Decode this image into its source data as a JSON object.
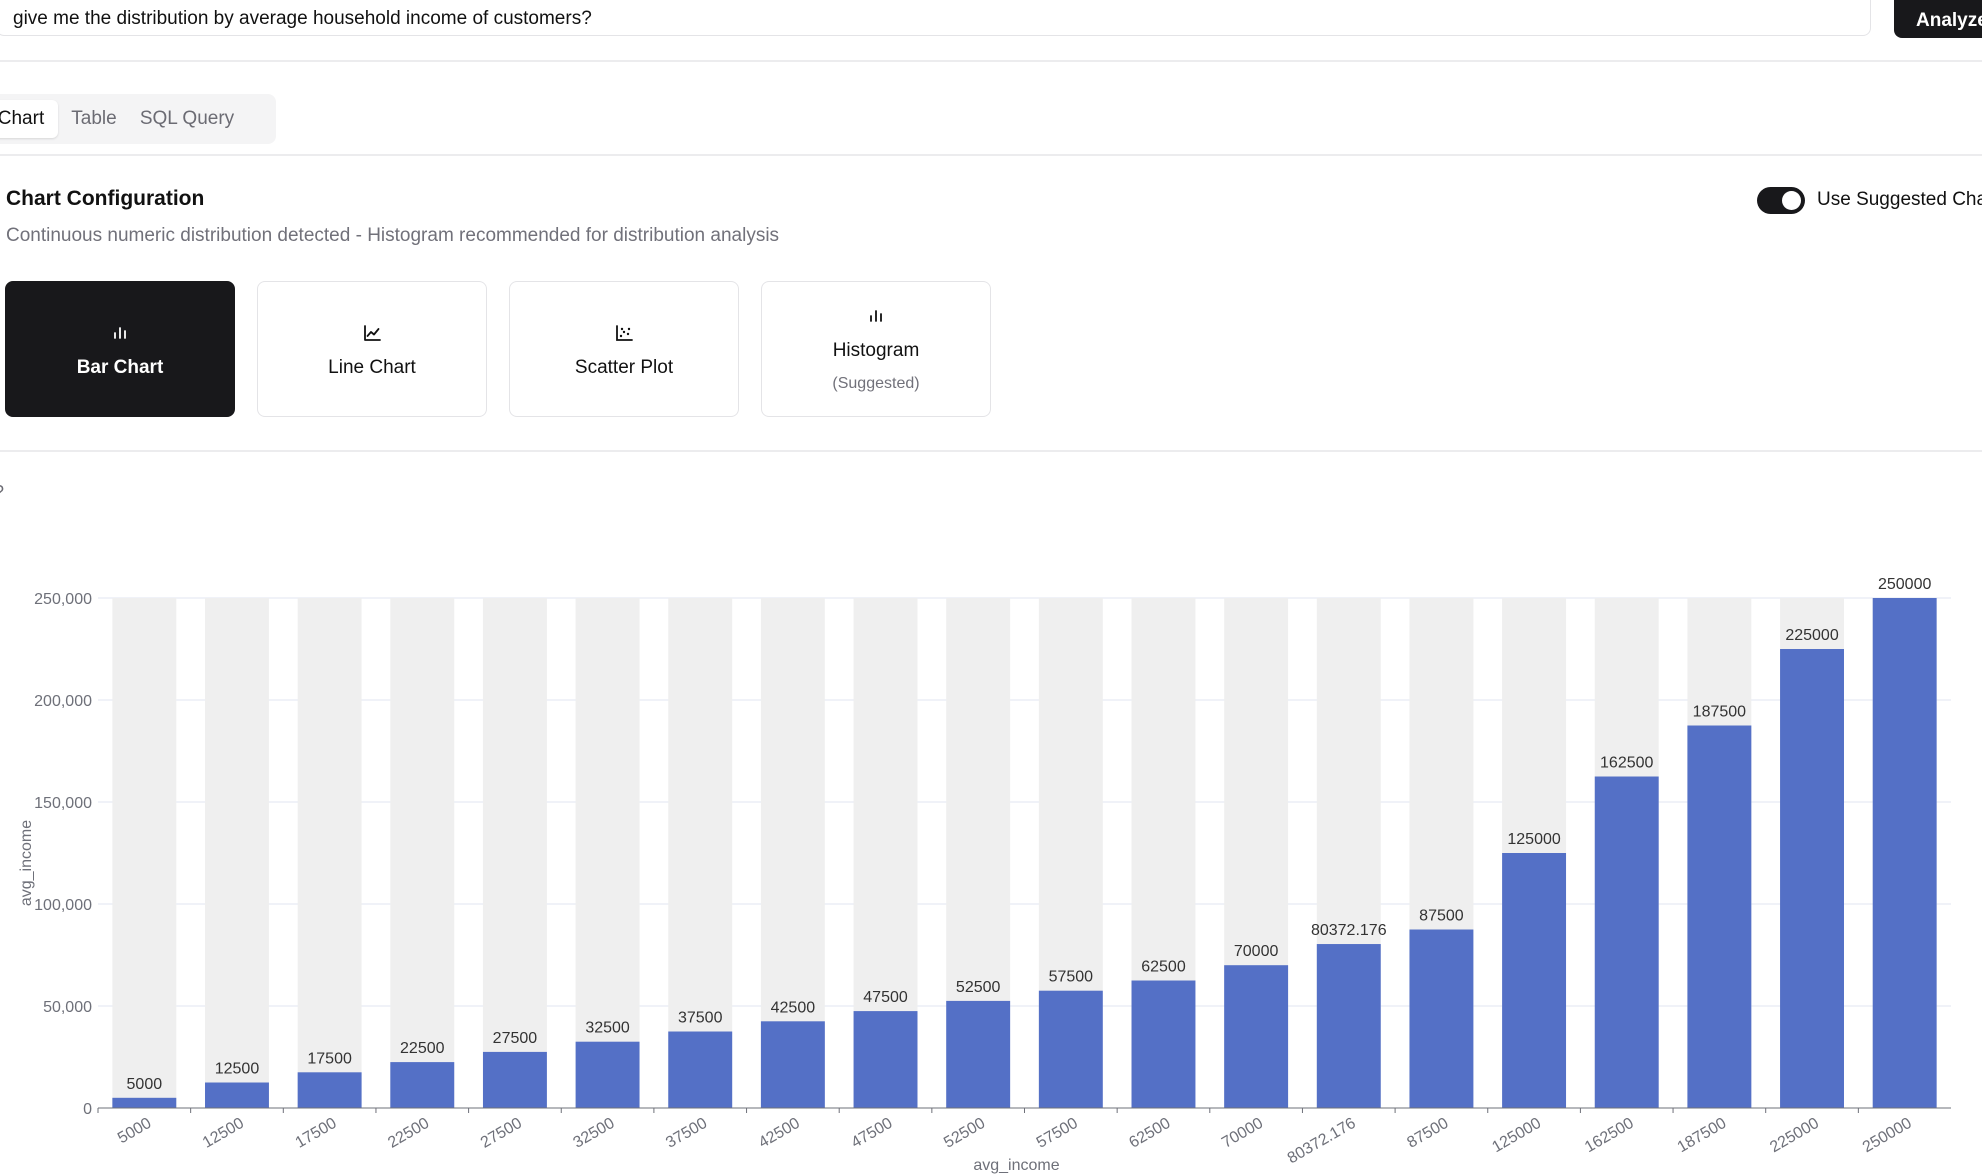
{
  "query": {
    "value": "give me the distribution by average household income of customers?",
    "button_label": "Analyze"
  },
  "view_tabs": [
    "Chart",
    "Table",
    "SQL Query"
  ],
  "config": {
    "title": "Chart Configuration",
    "subtitle": "Continuous numeric distribution detected - Histogram recommended for distribution analysis",
    "toggle_label": "Use Suggested Chart",
    "toggle_on": true,
    "chart_types": [
      {
        "label": "Bar Chart",
        "icon": "bar-chart-icon",
        "selected": true
      },
      {
        "label": "Line Chart",
        "icon": "line-chart-icon",
        "selected": false
      },
      {
        "label": "Scatter Plot",
        "icon": "scatter-plot-icon",
        "selected": false
      },
      {
        "label": "Histogram",
        "sub": "(Suggested)",
        "icon": "histogram-icon",
        "selected": false
      }
    ]
  },
  "chart_data": {
    "type": "bar",
    "categories": [
      "5000",
      "12500",
      "17500",
      "22500",
      "27500",
      "32500",
      "37500",
      "42500",
      "47500",
      "52500",
      "57500",
      "62500",
      "70000",
      "80372.176",
      "87500",
      "125000",
      "162500",
      "187500",
      "225000",
      "250000"
    ],
    "values": [
      5000,
      12500,
      17500,
      22500,
      27500,
      32500,
      37500,
      42500,
      47500,
      52500,
      57500,
      62500,
      70000,
      80372.176,
      87500,
      125000,
      162500,
      187500,
      225000,
      250000
    ],
    "data_labels": [
      "5000",
      "12500",
      "17500",
      "22500",
      "27500",
      "32500",
      "37500",
      "42500",
      "47500",
      "52500",
      "57500",
      "62500",
      "70000",
      "80372.176",
      "87500",
      "125000",
      "162500",
      "187500",
      "225000",
      "250000"
    ],
    "xlabel": "avg_income",
    "ylabel": "avg_income",
    "ylim": [
      0,
      250000
    ],
    "yticks": [
      "0",
      "50,000",
      "100,000",
      "150,000",
      "200,000",
      "250,000"
    ],
    "bar_color": "#5470c6",
    "background_bar_color": "#efefef",
    "grid": true
  }
}
